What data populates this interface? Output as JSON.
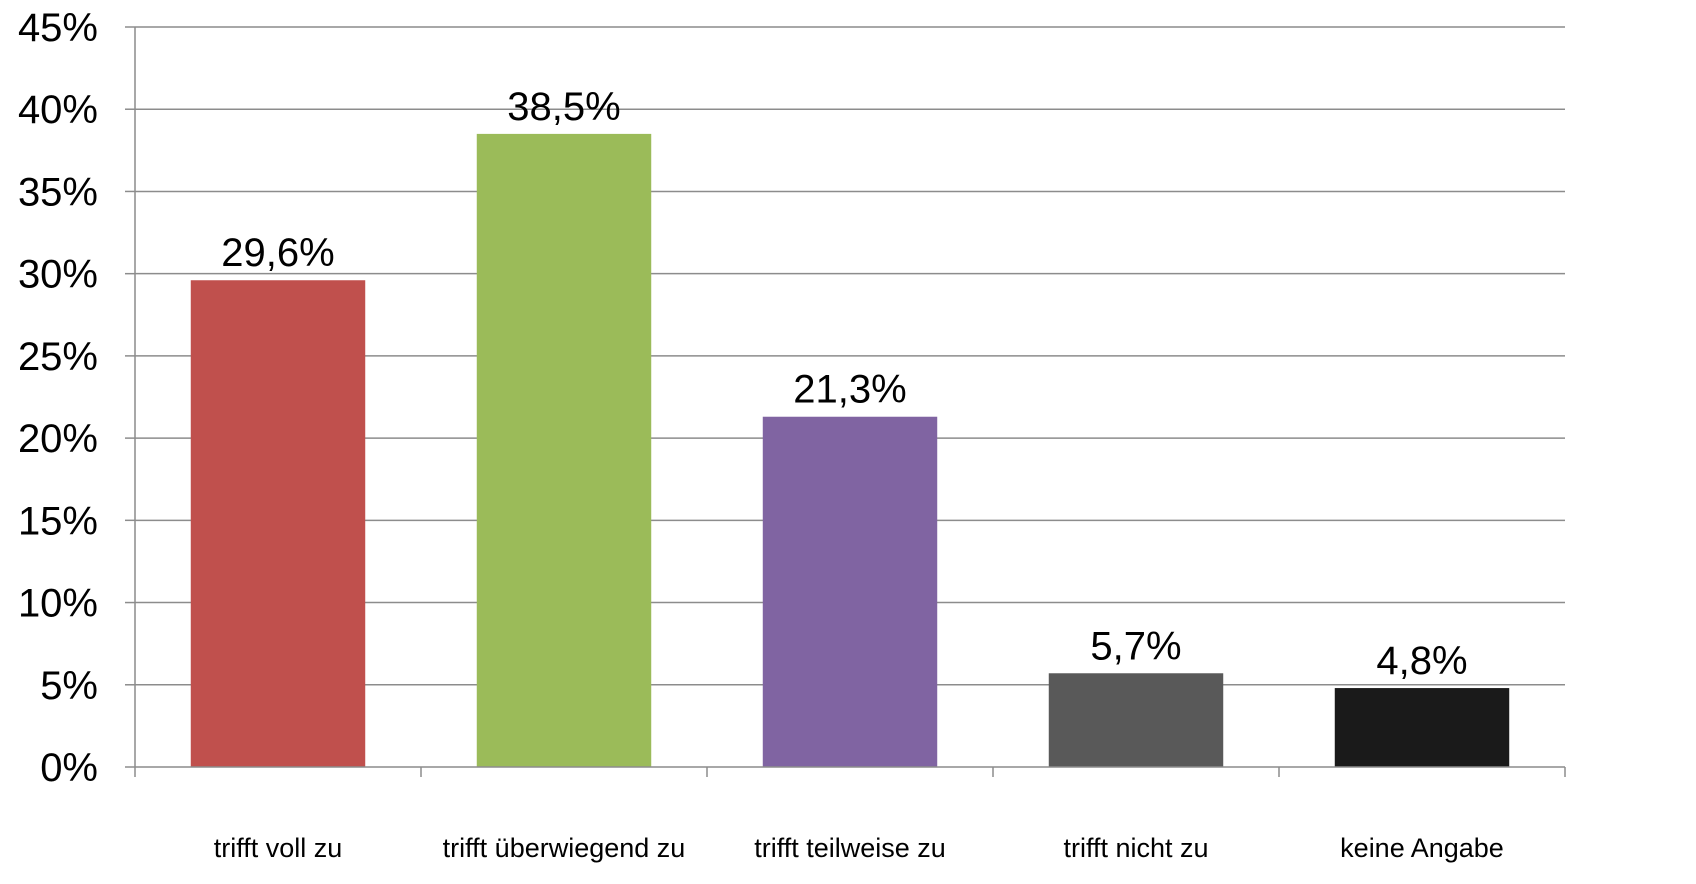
{
  "chart_data": {
    "type": "bar",
    "categories": [
      "trifft voll zu",
      "trifft überwiegend zu",
      "trifft teilweise zu",
      "trifft nicht zu",
      "keine Angabe"
    ],
    "values": [
      29.6,
      38.5,
      21.3,
      5.7,
      4.8
    ],
    "value_labels": [
      "29,6%",
      "38,5%",
      "21,3%",
      "5,7%",
      "4,8%"
    ],
    "colors": [
      "#c0504d",
      "#9bbb59",
      "#8064a2",
      "#595959",
      "#1a1a1a"
    ],
    "yticks": [
      0,
      5,
      10,
      15,
      20,
      25,
      30,
      35,
      40,
      45
    ],
    "ytick_labels": [
      "0%",
      "5%",
      "10%",
      "15%",
      "20%",
      "25%",
      "30%",
      "35%",
      "40%",
      "45%"
    ],
    "ylim": [
      0,
      45
    ],
    "grid": true,
    "legend": false,
    "title": "",
    "xlabel": "",
    "ylabel": ""
  }
}
